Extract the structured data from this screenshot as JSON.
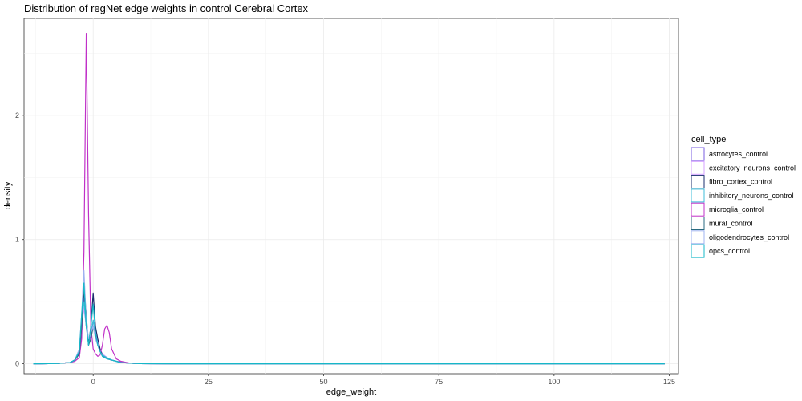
{
  "chart_data": {
    "type": "line",
    "title": "Distribution of regNet edge weights in control Cerebral Cortex",
    "xlabel": "edge_weight",
    "ylabel": "density",
    "xlim": [
      -15,
      127
    ],
    "ylim": [
      -0.08,
      2.78
    ],
    "x_ticks": [
      0,
      25,
      50,
      75,
      100,
      125
    ],
    "y_ticks": [
      0,
      1,
      2
    ],
    "grid": true,
    "legend_title": "cell_type",
    "legend_position": "right",
    "series": [
      {
        "name": "astrocytes_control",
        "color": "#7a5ce0",
        "x": [
          -13,
          -8,
          -5,
          -4,
          -3,
          -2.5,
          -2,
          -1.5,
          -1,
          -0.5,
          0,
          0.5,
          1,
          1.5,
          2,
          3,
          4,
          5,
          6,
          8,
          10,
          20,
          124
        ],
        "y": [
          0,
          0.002,
          0.01,
          0.03,
          0.08,
          0.25,
          0.55,
          0.3,
          0.18,
          0.22,
          0.35,
          0.25,
          0.15,
          0.1,
          0.07,
          0.04,
          0.03,
          0.02,
          0.015,
          0.005,
          0.001,
          0,
          0
        ]
      },
      {
        "name": "excitatory_neurons_control",
        "color": "#d4a0ff",
        "x": [
          -13,
          -8,
          -5,
          -4,
          -3,
          -2.5,
          -2,
          -1.5,
          -1,
          -0.5,
          0,
          0.5,
          1,
          1.5,
          2,
          3,
          4,
          5,
          6,
          8,
          10,
          20,
          124
        ],
        "y": [
          0,
          0.002,
          0.01,
          0.03,
          0.1,
          0.3,
          0.45,
          0.3,
          0.2,
          0.25,
          0.3,
          0.25,
          0.18,
          0.12,
          0.08,
          0.05,
          0.03,
          0.02,
          0.01,
          0.005,
          0.001,
          0,
          0
        ]
      },
      {
        "name": "fibro_cortex_control",
        "color": "#1a2d6e",
        "x": [
          -13,
          -8,
          -5,
          -4,
          -3,
          -2.5,
          -2,
          -1.5,
          -1,
          -0.5,
          0,
          0.5,
          1,
          1.5,
          2,
          3,
          4,
          5,
          6,
          8,
          10,
          20,
          124
        ],
        "y": [
          0,
          0.002,
          0.01,
          0.03,
          0.08,
          0.3,
          0.6,
          0.35,
          0.15,
          0.3,
          0.57,
          0.3,
          0.2,
          0.12,
          0.07,
          0.04,
          0.03,
          0.02,
          0.01,
          0.005,
          0.001,
          0,
          0
        ]
      },
      {
        "name": "inhibitory_neurons_control",
        "color": "#3fbcd8",
        "x": [
          -13,
          -8,
          -5,
          -4,
          -3,
          -2.5,
          -2,
          -1.5,
          -1,
          -0.5,
          0,
          0.5,
          1,
          1.5,
          2,
          3,
          4,
          5,
          6,
          8,
          10,
          20,
          124
        ],
        "y": [
          0,
          0.002,
          0.01,
          0.03,
          0.1,
          0.35,
          0.5,
          0.3,
          0.2,
          0.25,
          0.35,
          0.22,
          0.15,
          0.1,
          0.07,
          0.05,
          0.03,
          0.02,
          0.01,
          0.005,
          0.001,
          0,
          0
        ]
      },
      {
        "name": "microglia_control",
        "color": "#c030c8",
        "x": [
          -13,
          -8,
          -5,
          -4,
          -3,
          -2.5,
          -2,
          -1.5,
          -1,
          -0.5,
          0,
          0.5,
          1,
          1.5,
          2,
          2.5,
          3,
          3.5,
          4,
          5,
          6,
          8,
          10,
          20,
          124
        ],
        "y": [
          0,
          0.002,
          0.01,
          0.02,
          0.05,
          0.2,
          0.9,
          2.66,
          1.2,
          0.3,
          0.12,
          0.08,
          0.06,
          0.07,
          0.15,
          0.28,
          0.31,
          0.25,
          0.12,
          0.04,
          0.02,
          0.005,
          0.001,
          0,
          0
        ]
      },
      {
        "name": "mural_control",
        "color": "#2a6a80",
        "x": [
          -13,
          -8,
          -5,
          -4,
          -3,
          -2.5,
          -2,
          -1.5,
          -1,
          -0.5,
          0,
          0.5,
          1,
          1.5,
          2,
          3,
          4,
          5,
          6,
          8,
          10,
          20,
          124
        ],
        "y": [
          0,
          0.002,
          0.01,
          0.03,
          0.08,
          0.3,
          0.62,
          0.4,
          0.15,
          0.2,
          0.3,
          0.22,
          0.15,
          0.1,
          0.06,
          0.04,
          0.03,
          0.02,
          0.01,
          0.005,
          0.001,
          0,
          0
        ]
      },
      {
        "name": "oligodendrocytes_control",
        "color": "#9fb3f0",
        "x": [
          -13,
          -8,
          -5,
          -4,
          -3,
          -2.5,
          -2,
          -1.5,
          -1,
          -0.5,
          0,
          0.5,
          1,
          1.5,
          2,
          3,
          4,
          5,
          6,
          8,
          10,
          20,
          124
        ],
        "y": [
          0,
          0.002,
          0.01,
          0.03,
          0.12,
          0.4,
          0.75,
          0.35,
          0.2,
          0.25,
          0.3,
          0.2,
          0.15,
          0.1,
          0.06,
          0.04,
          0.03,
          0.02,
          0.01,
          0.005,
          0.001,
          0,
          0
        ]
      },
      {
        "name": "opcs_control",
        "color": "#16b8c8",
        "x": [
          -13,
          -8,
          -5,
          -4,
          -3,
          -2.5,
          -2,
          -1.5,
          -1,
          -0.5,
          0,
          0.5,
          1,
          1.5,
          2,
          3,
          4,
          5,
          6,
          8,
          10,
          20,
          124
        ],
        "y": [
          0,
          0.002,
          0.01,
          0.03,
          0.1,
          0.4,
          0.65,
          0.3,
          0.15,
          0.3,
          0.48,
          0.25,
          0.15,
          0.1,
          0.06,
          0.04,
          0.03,
          0.02,
          0.01,
          0.005,
          0.001,
          0,
          0
        ]
      }
    ]
  }
}
